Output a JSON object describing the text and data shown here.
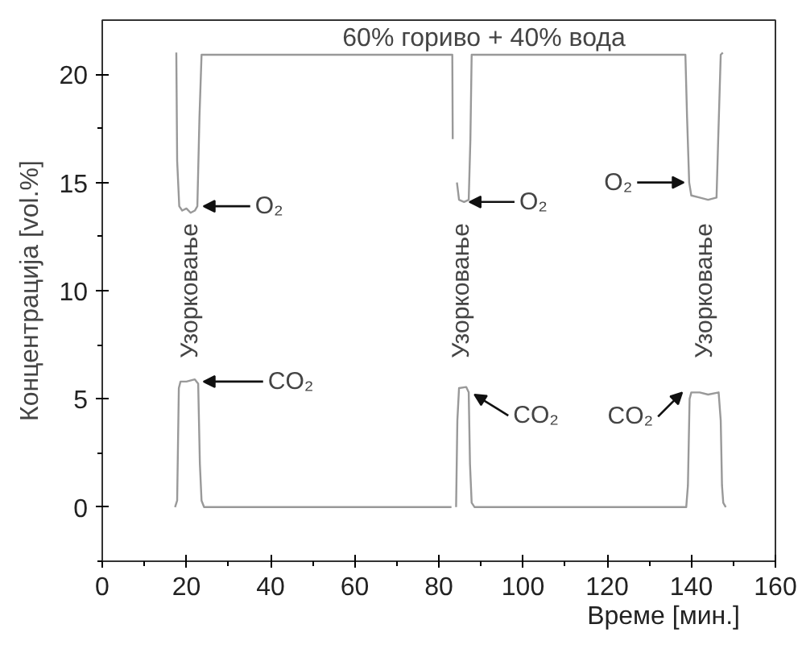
{
  "chart_data": {
    "type": "line",
    "title": "60% гориво + 40% вода",
    "xlabel": "Време [мин.]",
    "ylabel": "Концентрација [vol.%]",
    "xlim": [
      0,
      160
    ],
    "xticks": [
      0,
      20,
      40,
      60,
      80,
      100,
      120,
      140,
      160
    ],
    "ylim": [
      -2.5,
      22.5
    ],
    "yticks": [
      0,
      5,
      10,
      15,
      20
    ],
    "line_style": "solid",
    "series": [
      {
        "color": "#999999",
        "x": [
          17.6,
          17.8,
          18.3,
          19,
          20,
          21,
          22,
          22.6,
          23.1,
          23.6,
          50,
          83.2,
          83.3,
          83.8,
          84.3,
          84.8,
          86,
          87.1,
          87.5,
          87.8,
          110,
          138.6,
          139,
          139.5,
          140,
          142,
          144,
          146,
          146.4,
          147,
          147.5
        ],
        "values": [
          21,
          16,
          13.9,
          13.7,
          13.8,
          13.6,
          13.7,
          13.9,
          18,
          20.9,
          20.9,
          20.9,
          17,
          null,
          15,
          14.2,
          14.1,
          14.2,
          17,
          20.9,
          20.9,
          20.9,
          18,
          15,
          14.4,
          14.3,
          14.2,
          14.3,
          17,
          20.9,
          21
        ]
      },
      {
        "color": "#999999",
        "x": [
          17.3,
          17.8,
          18.2,
          18.6,
          20,
          22,
          22.8,
          23.2,
          23.6,
          24.2,
          83,
          83.5,
          84.1,
          84.4,
          84.8,
          86.5,
          87.1,
          87.4,
          87.8,
          88.5,
          138.8,
          139.2,
          139.6,
          140,
          142,
          144,
          146.5,
          147,
          147.3,
          147.6,
          148.2
        ],
        "values": [
          0,
          0.3,
          5.5,
          5.8,
          5.8,
          5.9,
          5.7,
          2,
          0.3,
          0,
          0,
          null,
          0,
          4,
          5.5,
          5.55,
          5.3,
          2,
          0.2,
          0,
          0,
          1,
          5,
          5.3,
          5.3,
          5.2,
          5.3,
          4,
          1,
          0.2,
          0
        ]
      }
    ],
    "annotations": [
      "Узорковање",
      {
        "text": "O₂",
        "x": 23.3,
        "y": 13.9
      },
      {
        "text": "CO₂",
        "x": 23.3,
        "y": 5.8
      },
      "Узорковање",
      {
        "text": "O₂",
        "x": 86.5,
        "y": 14.1
      },
      {
        "text": "CO₂",
        "x": 87.7,
        "y": 5.2
      },
      "Узорковање",
      {
        "text": "O₂",
        "x": 139,
        "y": 15
      },
      {
        "text": "CO₂",
        "x": 138.6,
        "y": 5.3
      }
    ]
  }
}
